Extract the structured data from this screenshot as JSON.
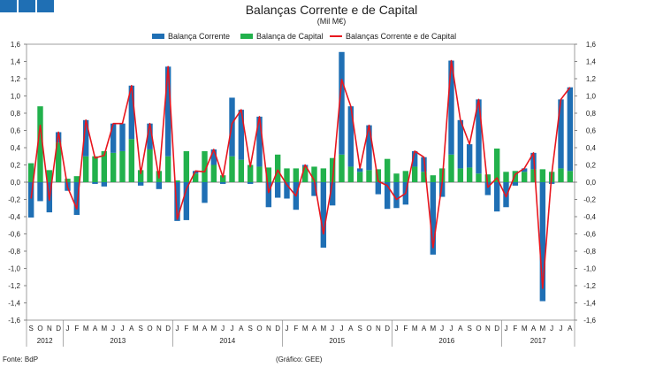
{
  "header": {
    "title": "Balanças Corrente e de Capital",
    "subtitle": "(Mil M€)"
  },
  "legend": {
    "current": "Balança Corrente",
    "capital": "Balança de Capital",
    "total": "Balanças Corrente e de Capital"
  },
  "footer": {
    "source": "Fonte: BdP",
    "graph": "(Gráfico: GEE)"
  },
  "colors": {
    "current": "#1f6fb4",
    "capital": "#22b14c",
    "total": "#e8161e"
  },
  "chart_data": {
    "type": "bar",
    "title": "Balanças Corrente e de Capital",
    "ylabel": "Mil M€",
    "ylim": [
      -1.6,
      1.6
    ],
    "yticks": [
      "1,6",
      "1,4",
      "1,2",
      "1,0",
      "0,8",
      "0,6",
      "0,4",
      "0,2",
      "0,0",
      "-0,2",
      "-0,4",
      "-0,6",
      "-0,8",
      "-1,0",
      "-1,2",
      "-1,4",
      "-1,6"
    ],
    "categories": [
      "S",
      "O",
      "N",
      "D",
      "J",
      "F",
      "M",
      "A",
      "M",
      "J",
      "J",
      "A",
      "S",
      "O",
      "N",
      "D",
      "J",
      "F",
      "M",
      "A",
      "M",
      "J",
      "J",
      "A",
      "S",
      "O",
      "N",
      "D",
      "J",
      "F",
      "M",
      "A",
      "M",
      "J",
      "J",
      "A",
      "S",
      "O",
      "N",
      "D",
      "J",
      "F",
      "M",
      "A",
      "M",
      "J",
      "J",
      "A",
      "S",
      "O",
      "N",
      "D",
      "J",
      "F",
      "M",
      "A",
      "M",
      "J",
      "J",
      "A"
    ],
    "years": [
      {
        "label": "2012",
        "start": 0,
        "count": 4
      },
      {
        "label": "2013",
        "start": 4,
        "count": 12
      },
      {
        "label": "2014",
        "start": 16,
        "count": 12
      },
      {
        "label": "2015",
        "start": 28,
        "count": 12
      },
      {
        "label": "2016",
        "start": 40,
        "count": 12
      },
      {
        "label": "2017",
        "start": 52,
        "count": 8
      }
    ],
    "series": [
      {
        "name": "Balança Corrente",
        "values": [
          -0.41,
          -0.22,
          -0.35,
          0.12,
          -0.1,
          -0.38,
          0.42,
          -0.02,
          -0.05,
          0.34,
          0.32,
          0.62,
          -0.04,
          0.3,
          -0.08,
          1.04,
          -0.45,
          -0.44,
          0.03,
          -0.24,
          0.18,
          -0.02,
          0.68,
          0.58,
          -0.02,
          0.58,
          -0.29,
          -0.18,
          -0.19,
          -0.32,
          0.02,
          -0.16,
          -0.76,
          -0.27,
          1.19,
          0.7,
          0.04,
          0.52,
          -0.14,
          -0.31,
          -0.3,
          -0.26,
          0.18,
          0.17,
          -0.84,
          -0.17,
          1.09,
          0.56,
          0.27,
          0.86,
          -0.15,
          -0.34,
          -0.29,
          -0.04,
          0.04,
          0.19,
          -1.38,
          -0.02,
          0.8,
          0.97
        ],
        "type": "bar"
      },
      {
        "name": "Balança de Capital",
        "values": [
          0.22,
          0.88,
          0.14,
          0.46,
          0.04,
          0.07,
          0.3,
          0.3,
          0.36,
          0.34,
          0.36,
          0.5,
          0.14,
          0.38,
          0.13,
          0.3,
          0.02,
          0.36,
          0.1,
          0.36,
          0.2,
          0.08,
          0.3,
          0.26,
          0.2,
          0.18,
          0.17,
          0.32,
          0.16,
          0.16,
          0.18,
          0.18,
          0.16,
          0.28,
          0.32,
          0.18,
          0.12,
          0.14,
          0.15,
          0.27,
          0.1,
          0.13,
          0.18,
          0.12,
          0.08,
          0.16,
          0.32,
          0.16,
          0.17,
          0.1,
          0.09,
          0.39,
          0.12,
          0.13,
          0.12,
          0.15,
          0.15,
          0.12,
          0.16,
          0.13
        ],
        "type": "bar"
      },
      {
        "name": "Balanças Corrente e de Capital",
        "values": [
          -0.19,
          0.66,
          -0.21,
          0.58,
          -0.06,
          -0.31,
          0.72,
          0.28,
          0.31,
          0.68,
          0.68,
          1.12,
          0.1,
          0.68,
          0.05,
          1.34,
          -0.43,
          -0.08,
          0.13,
          0.12,
          0.38,
          0.06,
          0.68,
          0.84,
          0.18,
          0.76,
          -0.12,
          0.14,
          -0.03,
          -0.16,
          0.2,
          0.02,
          -0.6,
          0.01,
          1.19,
          0.88,
          0.16,
          0.66,
          0.01,
          -0.04,
          -0.2,
          -0.13,
          0.36,
          0.29,
          -0.76,
          -0.01,
          1.41,
          0.72,
          0.44,
          0.96,
          -0.06,
          0.05,
          -0.17,
          0.09,
          0.16,
          0.34,
          -1.23,
          0.1,
          0.96,
          1.1
        ],
        "type": "line"
      }
    ]
  }
}
